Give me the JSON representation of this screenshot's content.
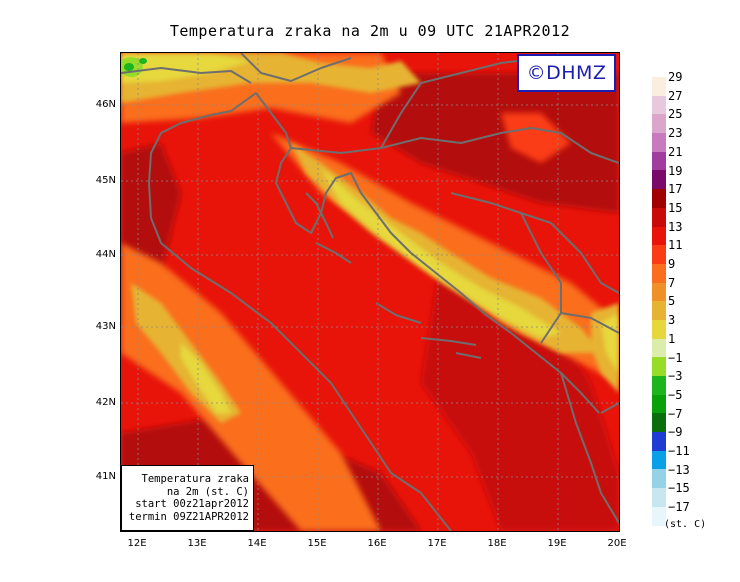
{
  "title": "Temperatura zraka na 2m u 09 UTC 21APR2012",
  "logo": "©DHMZ",
  "info_box": [
    "Temperatura zraka",
    "na 2m (st. C)",
    "start 00z21apr2012",
    "termin 09Z21APR2012"
  ],
  "lat_labels": [
    "46N",
    "45N",
    "44N",
    "43N",
    "42N",
    "41N"
  ],
  "lon_labels": [
    "12E",
    "13E",
    "14E",
    "15E",
    "16E",
    "17E",
    "18E",
    "19E",
    "20E"
  ],
  "legend": {
    "unit": "(st. C)",
    "labels": [
      "29",
      "27",
      "25",
      "23",
      "21",
      "19",
      "17",
      "15",
      "13",
      "11",
      "9",
      "7",
      "5",
      "3",
      "1",
      "−1",
      "−3",
      "−5",
      "−7",
      "−9",
      "−11",
      "−13",
      "−15",
      "−17"
    ],
    "colors": [
      "#fbeee0",
      "#e8c8dc",
      "#dca6cc",
      "#c77ac0",
      "#a23b9e",
      "#7a0a6a",
      "#a00000",
      "#c80a0a",
      "#e8140a",
      "#fa3c14",
      "#fa6e1e",
      "#f09028",
      "#e6b432",
      "#e6d83c",
      "#dcecaa",
      "#96dc28",
      "#1eb41e",
      "#0aa00a",
      "#0a6e0a",
      "#1e3cd2",
      "#0aa0e6",
      "#96d2e6",
      "#c8e6f0",
      "#e6f6fa"
    ]
  },
  "colors": {
    "sea": "#e8140a",
    "coast_line": "#6e6e6e",
    "warm_land": "#c80a0a",
    "mountains": "#e6d83c"
  }
}
